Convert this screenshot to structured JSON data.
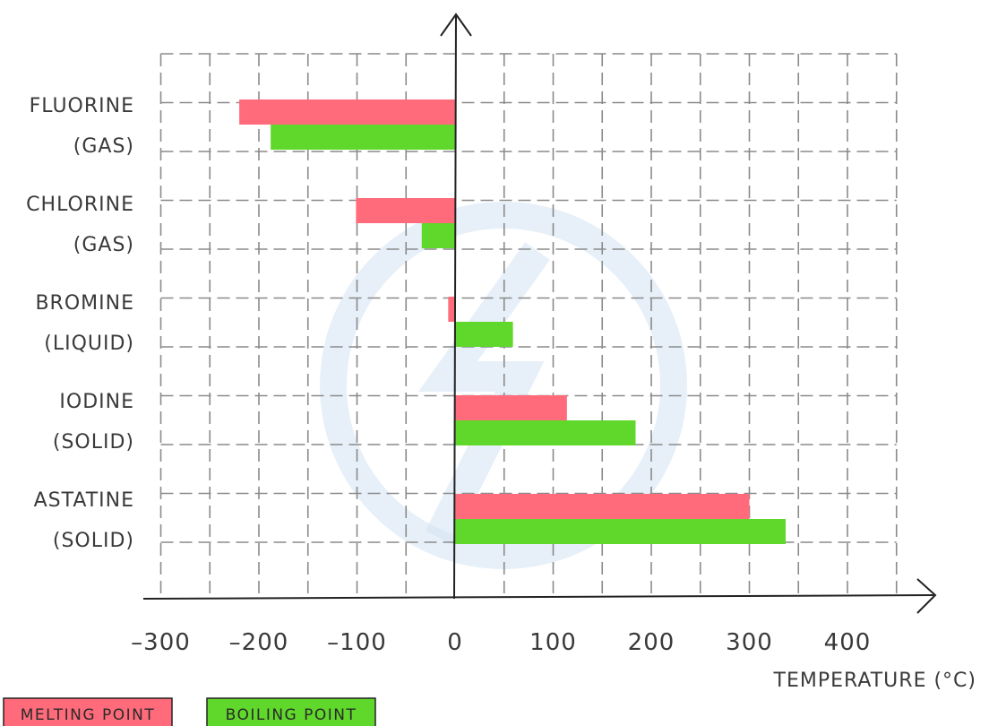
{
  "chart_data": {
    "type": "bar",
    "orientation": "horizontal",
    "categories": [
      {
        "name": "FLUORINE",
        "state": "(GAS)"
      },
      {
        "name": "CHLORINE",
        "state": "(GAS)"
      },
      {
        "name": "BROMINE",
        "state": "(LIQUID)"
      },
      {
        "name": "IODINE",
        "state": "(SOLID)"
      },
      {
        "name": "ASTATINE",
        "state": "(SOLID)"
      }
    ],
    "series": [
      {
        "name": "MELTING POINT",
        "color": "#ff6b7a",
        "values": [
          -220,
          -101,
          -7,
          114,
          300
        ]
      },
      {
        "name": "BOILING POINT",
        "color": "#5fd82b",
        "values": [
          -188,
          -34,
          59,
          184,
          337
        ]
      }
    ],
    "xlabel": "TEMPERATURE (°C)",
    "xlim": [
      -300,
      450
    ],
    "xticks": [
      -300,
      -200,
      -100,
      0,
      100,
      200,
      300,
      400
    ],
    "xtick_labels": [
      "–300",
      "–200",
      "–100",
      "0",
      "100",
      "200",
      "300",
      "400"
    ],
    "grid": true,
    "legend_position": "bottom-left"
  }
}
